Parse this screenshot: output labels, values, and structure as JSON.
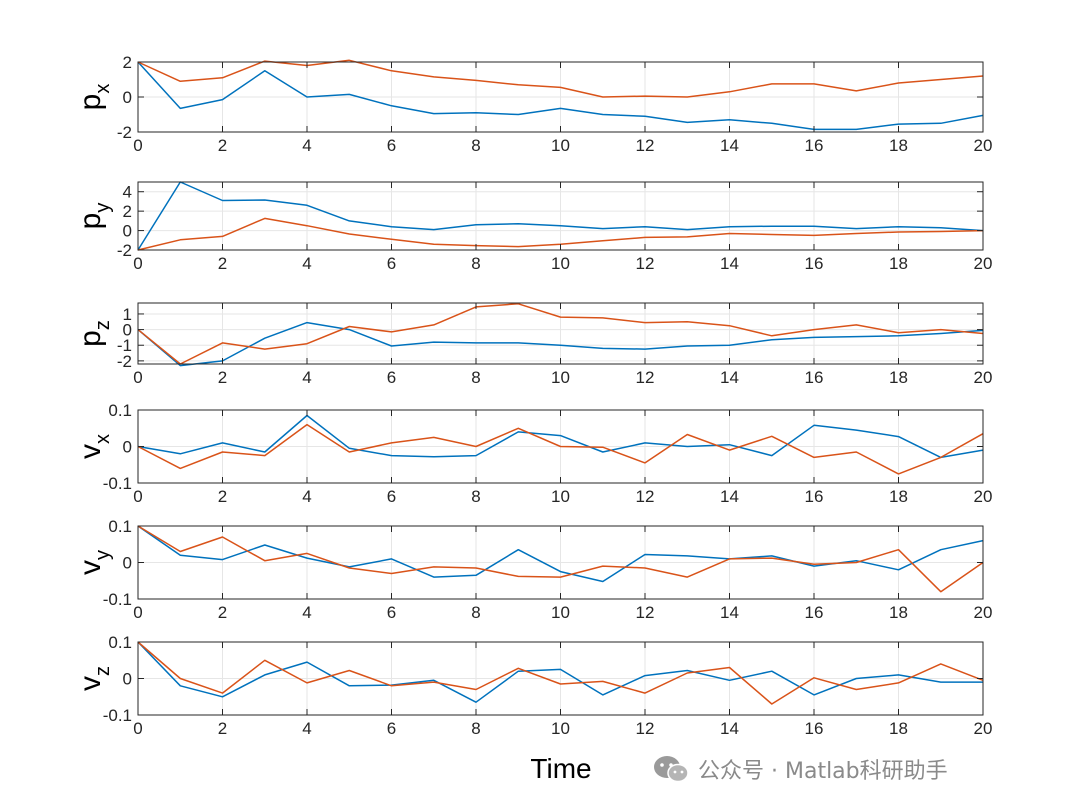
{
  "figure": {
    "xlabel": "Time"
  },
  "series_colors": [
    "#0072BD",
    "#D95319"
  ],
  "watermark": {
    "text": "公众号 · Matlab科研助手",
    "icon": "wechat-icon"
  },
  "chart_data": [
    {
      "type": "line",
      "ylabel_base": "p",
      "ylabel_sub": "x",
      "xlim": [
        0,
        20
      ],
      "ylim": [
        -2,
        2
      ],
      "xticks": [
        0,
        2,
        4,
        6,
        8,
        10,
        12,
        14,
        16,
        18,
        20
      ],
      "yticks": [
        -2,
        0,
        2
      ],
      "ytick_labels": [
        "-2",
        "0",
        "2"
      ],
      "grid": true,
      "x": [
        0,
        1,
        2,
        3,
        4,
        5,
        6,
        7,
        8,
        9,
        10,
        11,
        12,
        13,
        14,
        15,
        16,
        17,
        18,
        19,
        20
      ],
      "series": [
        {
          "values": [
            2.0,
            -0.65,
            -0.15,
            1.5,
            0.0,
            0.15,
            -0.5,
            -0.95,
            -0.9,
            -1.0,
            -0.65,
            -1.0,
            -1.1,
            -1.45,
            -1.3,
            -1.5,
            -1.85,
            -1.85,
            -1.55,
            -1.5,
            -1.05
          ]
        },
        {
          "values": [
            2.0,
            0.9,
            1.1,
            2.05,
            1.8,
            2.1,
            1.5,
            1.15,
            0.95,
            0.7,
            0.55,
            0.0,
            0.05,
            0.0,
            0.3,
            0.75,
            0.75,
            0.35,
            0.8,
            1.0,
            1.2
          ]
        }
      ]
    },
    {
      "type": "line",
      "ylabel_base": "p",
      "ylabel_sub": "y",
      "xlim": [
        0,
        20
      ],
      "ylim": [
        -2,
        5
      ],
      "xticks": [
        0,
        2,
        4,
        6,
        8,
        10,
        12,
        14,
        16,
        18,
        20
      ],
      "yticks": [
        -2,
        0,
        2,
        4
      ],
      "ytick_labels": [
        "-2",
        "0",
        "2",
        "4"
      ],
      "grid": true,
      "x": [
        0,
        1,
        2,
        3,
        4,
        5,
        6,
        7,
        8,
        9,
        10,
        11,
        12,
        13,
        14,
        15,
        16,
        17,
        18,
        19,
        20
      ],
      "series": [
        {
          "values": [
            -2.0,
            5.0,
            3.1,
            3.15,
            2.6,
            1.0,
            0.4,
            0.1,
            0.6,
            0.7,
            0.5,
            0.2,
            0.4,
            0.1,
            0.4,
            0.45,
            0.45,
            0.2,
            0.4,
            0.3,
            0.0
          ]
        },
        {
          "values": [
            -2.0,
            -0.95,
            -0.6,
            1.25,
            0.5,
            -0.35,
            -0.9,
            -1.4,
            -1.55,
            -1.65,
            -1.4,
            -1.05,
            -0.7,
            -0.65,
            -0.3,
            -0.4,
            -0.5,
            -0.3,
            -0.15,
            -0.1,
            0.0
          ]
        }
      ]
    },
    {
      "type": "line",
      "ylabel_base": "p",
      "ylabel_sub": "z",
      "xlim": [
        0,
        20
      ],
      "ylim": [
        -2.2,
        1.7
      ],
      "xticks": [
        0,
        2,
        4,
        6,
        8,
        10,
        12,
        14,
        16,
        18,
        20
      ],
      "yticks": [
        -2,
        -1,
        0,
        1
      ],
      "ytick_labels": [
        "-2",
        "-1",
        "0",
        "1"
      ],
      "grid": true,
      "x": [
        0,
        1,
        2,
        3,
        4,
        5,
        6,
        7,
        8,
        9,
        10,
        11,
        12,
        13,
        14,
        15,
        16,
        17,
        18,
        19,
        20
      ],
      "series": [
        {
          "values": [
            0.0,
            -2.3,
            -2.0,
            -0.55,
            0.45,
            0.0,
            -1.05,
            -0.8,
            -0.85,
            -0.85,
            -1.0,
            -1.2,
            -1.25,
            -1.05,
            -1.0,
            -0.65,
            -0.5,
            -0.45,
            -0.4,
            -0.25,
            -0.05
          ]
        },
        {
          "values": [
            0.0,
            -2.2,
            -0.85,
            -1.25,
            -0.9,
            0.2,
            -0.15,
            0.3,
            1.45,
            1.65,
            0.8,
            0.75,
            0.45,
            0.5,
            0.25,
            -0.4,
            0.0,
            0.3,
            -0.2,
            0.0,
            -0.25
          ]
        }
      ]
    },
    {
      "type": "line",
      "ylabel_base": "v",
      "ylabel_sub": "x",
      "xlim": [
        0,
        20
      ],
      "ylim": [
        -0.1,
        0.1
      ],
      "xticks": [
        0,
        2,
        4,
        6,
        8,
        10,
        12,
        14,
        16,
        18,
        20
      ],
      "yticks": [
        -0.1,
        0,
        0.1
      ],
      "ytick_labels": [
        "-0.1",
        "0",
        "0.1"
      ],
      "grid": true,
      "x": [
        0,
        1,
        2,
        3,
        4,
        5,
        6,
        7,
        8,
        9,
        10,
        11,
        12,
        13,
        14,
        15,
        16,
        17,
        18,
        19,
        20
      ],
      "series": [
        {
          "values": [
            0.0,
            -0.02,
            0.01,
            -0.015,
            0.085,
            -0.005,
            -0.025,
            -0.028,
            -0.025,
            0.04,
            0.03,
            -0.015,
            0.01,
            0.0,
            0.005,
            -0.025,
            0.058,
            0.045,
            0.027,
            -0.03,
            -0.01
          ]
        },
        {
          "values": [
            0.0,
            -0.06,
            -0.015,
            -0.025,
            0.06,
            -0.015,
            0.01,
            0.025,
            0.0,
            0.05,
            0.0,
            -0.002,
            -0.045,
            0.033,
            -0.01,
            0.028,
            -0.03,
            -0.015,
            -0.075,
            -0.03,
            0.035
          ]
        }
      ]
    },
    {
      "type": "line",
      "ylabel_base": "v",
      "ylabel_sub": "y",
      "xlim": [
        0,
        20
      ],
      "ylim": [
        -0.1,
        0.1
      ],
      "xticks": [
        0,
        2,
        4,
        6,
        8,
        10,
        12,
        14,
        16,
        18,
        20
      ],
      "yticks": [
        -0.1,
        0,
        0.1
      ],
      "ytick_labels": [
        "-0.1",
        "0",
        "0.1"
      ],
      "grid": true,
      "x": [
        0,
        1,
        2,
        3,
        4,
        5,
        6,
        7,
        8,
        9,
        10,
        11,
        12,
        13,
        14,
        15,
        16,
        17,
        18,
        19,
        20
      ],
      "series": [
        {
          "values": [
            0.1,
            0.02,
            0.008,
            0.048,
            0.012,
            -0.012,
            0.01,
            -0.04,
            -0.035,
            0.035,
            -0.025,
            -0.052,
            0.022,
            0.018,
            0.01,
            0.018,
            -0.01,
            0.005,
            -0.02,
            0.035,
            0.06
          ]
        },
        {
          "values": [
            0.1,
            0.03,
            0.07,
            0.005,
            0.025,
            -0.015,
            -0.03,
            -0.012,
            -0.015,
            -0.038,
            -0.04,
            -0.01,
            -0.015,
            -0.04,
            0.01,
            0.012,
            -0.005,
            0.0,
            0.035,
            -0.08,
            0.0
          ]
        }
      ]
    },
    {
      "type": "line",
      "ylabel_base": "v",
      "ylabel_sub": "z",
      "xlim": [
        0,
        20
      ],
      "ylim": [
        -0.1,
        0.1
      ],
      "xticks": [
        0,
        2,
        4,
        6,
        8,
        10,
        12,
        14,
        16,
        18,
        20
      ],
      "yticks": [
        -0.1,
        0,
        0.1
      ],
      "ytick_labels": [
        "-0.1",
        "0",
        "0.1"
      ],
      "grid": true,
      "x": [
        0,
        1,
        2,
        3,
        4,
        5,
        6,
        7,
        8,
        9,
        10,
        11,
        12,
        13,
        14,
        15,
        16,
        17,
        18,
        19,
        20
      ],
      "series": [
        {
          "values": [
            0.1,
            -0.02,
            -0.05,
            0.01,
            0.045,
            -0.02,
            -0.018,
            -0.005,
            -0.065,
            0.02,
            0.025,
            -0.045,
            0.008,
            0.022,
            -0.005,
            0.02,
            -0.045,
            0.0,
            0.01,
            -0.01,
            -0.01
          ]
        },
        {
          "values": [
            0.1,
            0.0,
            -0.04,
            0.05,
            -0.012,
            0.022,
            -0.02,
            -0.01,
            -0.03,
            0.028,
            -0.015,
            -0.008,
            -0.04,
            0.015,
            0.03,
            -0.07,
            0.002,
            -0.03,
            -0.012,
            0.04,
            -0.005
          ]
        }
      ]
    }
  ]
}
